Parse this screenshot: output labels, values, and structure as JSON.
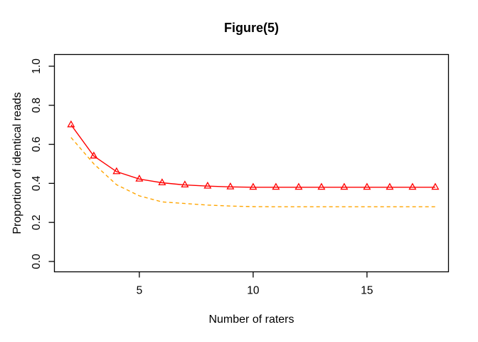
{
  "chart_data": {
    "type": "line",
    "title": "Figure(5)",
    "xlabel": "Number of raters",
    "ylabel": "Proportion of identical reads",
    "x": [
      2,
      3,
      4,
      5,
      6,
      7,
      8,
      9,
      10,
      11,
      12,
      13,
      14,
      15,
      16,
      17,
      18
    ],
    "series": [
      {
        "name": "red-solid-triangle",
        "color": "#ff0000",
        "line_style": "solid",
        "marker": "triangle-open",
        "values": [
          0.7,
          0.54,
          0.46,
          0.422,
          0.403,
          0.392,
          0.386,
          0.382,
          0.38,
          0.38,
          0.38,
          0.38,
          0.38,
          0.38,
          0.38,
          0.38,
          0.38
        ]
      },
      {
        "name": "orange-dashed",
        "color": "#ffa500",
        "line_style": "dashed",
        "marker": "none",
        "values": [
          0.635,
          0.5,
          0.393,
          0.336,
          0.305,
          0.297,
          0.289,
          0.284,
          0.281,
          0.28,
          0.28,
          0.28,
          0.28,
          0.28,
          0.28,
          0.28,
          0.28
        ]
      }
    ],
    "xticks": [
      {
        "value": 5,
        "label": "5"
      },
      {
        "value": 10,
        "label": "10"
      },
      {
        "value": 15,
        "label": "15"
      }
    ],
    "yticks": [
      {
        "value": 0.0,
        "label": "0.0"
      },
      {
        "value": 0.2,
        "label": "0.2"
      },
      {
        "value": 0.4,
        "label": "0.4"
      },
      {
        "value": 0.6,
        "label": "0.6"
      },
      {
        "value": 0.8,
        "label": "0.8"
      },
      {
        "value": 1.0,
        "label": "1.0"
      }
    ],
    "xlim": [
      1.27,
      18.58
    ],
    "ylim": [
      -0.053,
      1.06
    ],
    "grid": false,
    "legend": "none",
    "background": "#ffffff",
    "axis_color": "#000000"
  }
}
